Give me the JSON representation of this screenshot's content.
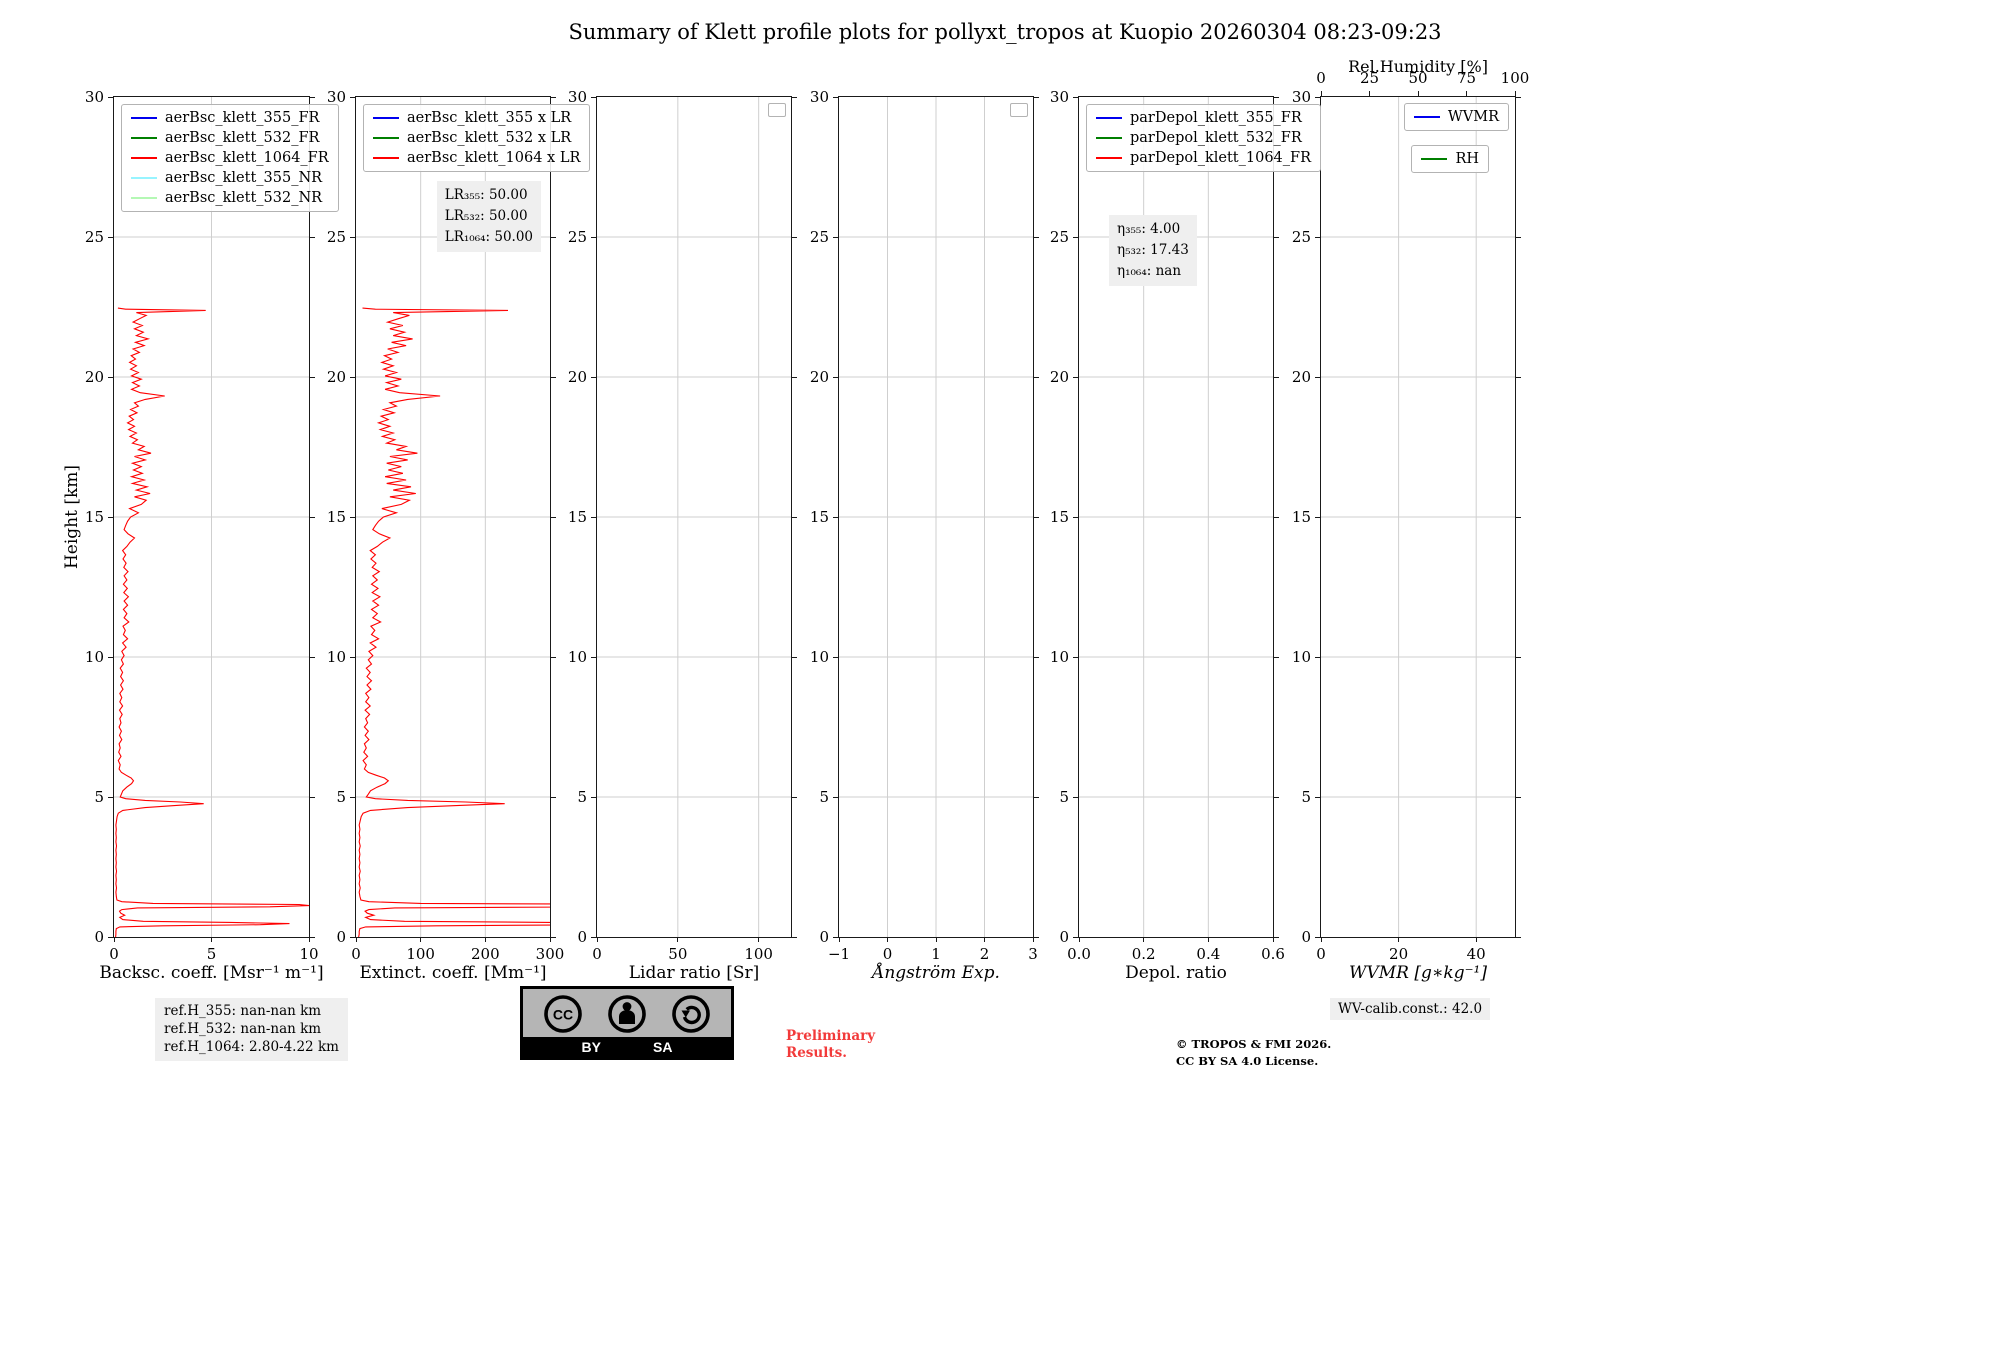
{
  "title": "Summary of Klett profile plots for pollyxt_tropos at Kuopio 20260304 08:23-09:23",
  "ylabel": "Height [km]",
  "colors": {
    "blue": "#0000ee",
    "green": "#007f00",
    "red": "#ff0000",
    "light_cyan": "#97f4ff",
    "pale_green": "#b4f8b4",
    "grid": "#cfcfcf",
    "annotation_bg": "#efefef"
  },
  "profile": {
    "name": "aerBsc_klett_1064_FR",
    "units": {
      "height": "km",
      "backscatter": "Msr⁻¹ m⁻¹"
    },
    "points": [
      [
        0.0,
        0.08
      ],
      [
        0.1,
        0.1
      ],
      [
        0.2,
        0.1
      ],
      [
        0.3,
        0.12
      ],
      [
        0.36,
        0.3
      ],
      [
        0.4,
        2.5
      ],
      [
        0.44,
        7.5
      ],
      [
        0.48,
        9.0
      ],
      [
        0.52,
        6.0
      ],
      [
        0.56,
        1.5
      ],
      [
        0.62,
        0.45
      ],
      [
        0.7,
        0.3
      ],
      [
        0.78,
        0.55
      ],
      [
        0.85,
        0.35
      ],
      [
        0.92,
        0.28
      ],
      [
        0.98,
        0.4
      ],
      [
        1.04,
        1.2
      ],
      [
        1.08,
        8.0
      ],
      [
        1.12,
        10.0
      ],
      [
        1.16,
        9.5
      ],
      [
        1.2,
        2.0
      ],
      [
        1.26,
        0.4
      ],
      [
        1.32,
        0.15
      ],
      [
        1.45,
        0.12
      ],
      [
        1.6,
        0.1
      ],
      [
        1.75,
        0.13
      ],
      [
        1.9,
        0.1
      ],
      [
        2.05,
        0.12
      ],
      [
        2.2,
        0.1
      ],
      [
        2.35,
        0.13
      ],
      [
        2.5,
        0.1
      ],
      [
        2.65,
        0.12
      ],
      [
        2.8,
        0.1
      ],
      [
        2.95,
        0.12
      ],
      [
        3.1,
        0.1
      ],
      [
        3.25,
        0.13
      ],
      [
        3.4,
        0.1
      ],
      [
        3.55,
        0.12
      ],
      [
        3.7,
        0.1
      ],
      [
        3.85,
        0.12
      ],
      [
        4.0,
        0.1
      ],
      [
        4.15,
        0.13
      ],
      [
        4.3,
        0.16
      ],
      [
        4.42,
        0.22
      ],
      [
        4.52,
        0.45
      ],
      [
        4.62,
        1.6
      ],
      [
        4.7,
        3.2
      ],
      [
        4.76,
        4.6
      ],
      [
        4.82,
        3.4
      ],
      [
        4.88,
        1.6
      ],
      [
        4.94,
        0.6
      ],
      [
        5.0,
        0.32
      ],
      [
        5.1,
        0.38
      ],
      [
        5.22,
        0.45
      ],
      [
        5.35,
        0.65
      ],
      [
        5.48,
        0.9
      ],
      [
        5.58,
        1.0
      ],
      [
        5.68,
        0.88
      ],
      [
        5.78,
        0.62
      ],
      [
        5.88,
        0.38
      ],
      [
        6.0,
        0.26
      ],
      [
        6.15,
        0.32
      ],
      [
        6.3,
        0.22
      ],
      [
        6.45,
        0.36
      ],
      [
        6.6,
        0.24
      ],
      [
        6.75,
        0.32
      ],
      [
        6.9,
        0.26
      ],
      [
        7.05,
        0.4
      ],
      [
        7.2,
        0.28
      ],
      [
        7.35,
        0.38
      ],
      [
        7.5,
        0.26
      ],
      [
        7.65,
        0.36
      ],
      [
        7.8,
        0.3
      ],
      [
        7.95,
        0.42
      ],
      [
        8.1,
        0.28
      ],
      [
        8.25,
        0.44
      ],
      [
        8.4,
        0.3
      ],
      [
        8.55,
        0.4
      ],
      [
        8.7,
        0.3
      ],
      [
        8.85,
        0.46
      ],
      [
        9.0,
        0.34
      ],
      [
        9.15,
        0.48
      ],
      [
        9.3,
        0.34
      ],
      [
        9.45,
        0.44
      ],
      [
        9.6,
        0.32
      ],
      [
        9.75,
        0.48
      ],
      [
        9.9,
        0.38
      ],
      [
        10.05,
        0.52
      ],
      [
        10.2,
        0.4
      ],
      [
        10.35,
        0.62
      ],
      [
        10.5,
        0.44
      ],
      [
        10.65,
        0.7
      ],
      [
        10.8,
        0.48
      ],
      [
        10.95,
        0.58
      ],
      [
        11.1,
        0.46
      ],
      [
        11.25,
        0.76
      ],
      [
        11.4,
        0.52
      ],
      [
        11.55,
        0.66
      ],
      [
        11.7,
        0.48
      ],
      [
        11.85,
        0.7
      ],
      [
        12.0,
        0.52
      ],
      [
        12.15,
        0.74
      ],
      [
        12.3,
        0.5
      ],
      [
        12.45,
        0.68
      ],
      [
        12.6,
        0.48
      ],
      [
        12.75,
        0.66
      ],
      [
        12.9,
        0.52
      ],
      [
        13.05,
        0.72
      ],
      [
        13.2,
        0.5
      ],
      [
        13.35,
        0.62
      ],
      [
        13.5,
        0.46
      ],
      [
        13.65,
        0.6
      ],
      [
        13.8,
        0.44
      ],
      [
        13.95,
        0.66
      ],
      [
        14.1,
        0.82
      ],
      [
        14.25,
        1.05
      ],
      [
        14.4,
        0.72
      ],
      [
        14.55,
        0.52
      ],
      [
        14.7,
        0.6
      ],
      [
        14.85,
        0.7
      ],
      [
        15.0,
        0.85
      ],
      [
        15.15,
        1.25
      ],
      [
        15.3,
        0.8
      ],
      [
        15.45,
        1.4
      ],
      [
        15.6,
        1.65
      ],
      [
        15.72,
        1.05
      ],
      [
        15.84,
        1.85
      ],
      [
        15.96,
        1.15
      ],
      [
        16.08,
        1.7
      ],
      [
        16.2,
        0.95
      ],
      [
        16.32,
        1.55
      ],
      [
        16.44,
        0.9
      ],
      [
        16.56,
        1.45
      ],
      [
        16.68,
        1.0
      ],
      [
        16.8,
        1.4
      ],
      [
        16.92,
        0.95
      ],
      [
        17.04,
        1.6
      ],
      [
        17.16,
        1.05
      ],
      [
        17.28,
        1.9
      ],
      [
        17.4,
        1.25
      ],
      [
        17.52,
        1.55
      ],
      [
        17.64,
        0.95
      ],
      [
        17.76,
        1.2
      ],
      [
        17.88,
        0.82
      ],
      [
        18.0,
        1.15
      ],
      [
        18.12,
        0.75
      ],
      [
        18.24,
        1.05
      ],
      [
        18.36,
        0.7
      ],
      [
        18.48,
        1.0
      ],
      [
        18.6,
        0.78
      ],
      [
        18.72,
        1.18
      ],
      [
        18.84,
        0.85
      ],
      [
        18.96,
        1.25
      ],
      [
        19.08,
        1.05
      ],
      [
        19.2,
        1.6
      ],
      [
        19.32,
        2.6
      ],
      [
        19.44,
        1.35
      ],
      [
        19.56,
        0.9
      ],
      [
        19.68,
        1.3
      ],
      [
        19.8,
        0.95
      ],
      [
        19.92,
        1.4
      ],
      [
        20.04,
        0.9
      ],
      [
        20.16,
        1.25
      ],
      [
        20.28,
        0.85
      ],
      [
        20.4,
        1.15
      ],
      [
        20.52,
        0.8
      ],
      [
        20.64,
        1.1
      ],
      [
        20.76,
        0.88
      ],
      [
        20.88,
        1.3
      ],
      [
        21.0,
        0.98
      ],
      [
        21.12,
        1.55
      ],
      [
        21.24,
        1.1
      ],
      [
        21.36,
        1.75
      ],
      [
        21.48,
        1.15
      ],
      [
        21.6,
        1.5
      ],
      [
        21.72,
        1.05
      ],
      [
        21.84,
        1.45
      ],
      [
        21.96,
        0.98
      ],
      [
        22.08,
        1.3
      ],
      [
        22.2,
        1.65
      ],
      [
        22.3,
        1.15
      ],
      [
        22.38,
        4.7
      ],
      [
        22.42,
        0.6
      ],
      [
        22.46,
        0.2
      ]
    ]
  },
  "chart_data": [
    {
      "id": "backscatter",
      "type": "line",
      "xlabel": "Backsc. coeff. [Msr⁻¹ m⁻¹]",
      "xlim": [
        0,
        10
      ],
      "xticks": [
        {
          "v": 0,
          "label": "0"
        },
        {
          "v": 5,
          "label": "5"
        },
        {
          "v": 10,
          "label": "10"
        }
      ],
      "ylim": [
        0,
        30
      ],
      "yticks": [
        {
          "v": 0,
          "label": "0"
        },
        {
          "v": 5,
          "label": "5"
        },
        {
          "v": 10,
          "label": "10"
        },
        {
          "v": 15,
          "label": "15"
        },
        {
          "v": 20,
          "label": "20"
        },
        {
          "v": 25,
          "label": "25"
        },
        {
          "v": 30,
          "label": "30"
        }
      ],
      "grid": true,
      "legend": [
        {
          "label": "aerBsc_klett_355_FR",
          "color": "#0000ee"
        },
        {
          "label": "aerBsc_klett_532_FR",
          "color": "#007f00"
        },
        {
          "label": "aerBsc_klett_1064_FR",
          "color": "#ff0000"
        },
        {
          "label": "aerBsc_klett_355_NR",
          "color": "#97f4ff"
        },
        {
          "label": "aerBsc_klett_532_NR",
          "color": "#b4f8b4"
        }
      ],
      "series": [
        {
          "name": "aerBsc_klett_1064_FR",
          "color": "#ff0000",
          "source": "profile",
          "scale": 1
        }
      ]
    },
    {
      "id": "extinction",
      "type": "line",
      "xlabel": "Extinct. coeff. [Mm⁻¹]",
      "xlim": [
        0,
        300
      ],
      "xticks": [
        {
          "v": 0,
          "label": "0"
        },
        {
          "v": 100,
          "label": "100"
        },
        {
          "v": 200,
          "label": "200"
        },
        {
          "v": 300,
          "label": "300"
        }
      ],
      "ylim": [
        0,
        30
      ],
      "yticks": [
        {
          "v": 0,
          "label": "0"
        },
        {
          "v": 5,
          "label": "5"
        },
        {
          "v": 10,
          "label": "10"
        },
        {
          "v": 15,
          "label": "15"
        },
        {
          "v": 20,
          "label": "20"
        },
        {
          "v": 25,
          "label": "25"
        },
        {
          "v": 30,
          "label": "30"
        }
      ],
      "grid": true,
      "legend": [
        {
          "label": "aerBsc_klett_355 x LR",
          "color": "#0000ee"
        },
        {
          "label": "aerBsc_klett_532 x LR",
          "color": "#007f00"
        },
        {
          "label": "aerBsc_klett_1064 x LR",
          "color": "#ff0000"
        }
      ],
      "annotation": [
        "LR₃₅₅: 50.00",
        "LR₅₃₂: 50.00",
        "LR₁₀₆₄: 50.00"
      ],
      "series": [
        {
          "name": "aerBsc_klett_1064 x LR",
          "color": "#ff0000",
          "source": "profile",
          "scale": 50
        }
      ]
    },
    {
      "id": "lidar-ratio",
      "type": "line",
      "xlabel": "Lidar ratio [Sr]",
      "xlim": [
        0,
        120
      ],
      "xticks": [
        {
          "v": 0,
          "label": "0"
        },
        {
          "v": 50,
          "label": "50"
        },
        {
          "v": 100,
          "label": "100"
        }
      ],
      "ylim": [
        0,
        30
      ],
      "yticks": [
        {
          "v": 0,
          "label": "0"
        },
        {
          "v": 5,
          "label": "5"
        },
        {
          "v": 10,
          "label": "10"
        },
        {
          "v": 15,
          "label": "15"
        },
        {
          "v": 20,
          "label": "20"
        },
        {
          "v": 25,
          "label": "25"
        },
        {
          "v": 30,
          "label": "30"
        }
      ],
      "grid": true,
      "empty_legend": true,
      "series": []
    },
    {
      "id": "angstrom",
      "type": "line",
      "xlabel": "Ångström Exp.",
      "xlim": [
        -1,
        3
      ],
      "xticks": [
        {
          "v": -1,
          "label": "−1"
        },
        {
          "v": 0,
          "label": "0"
        },
        {
          "v": 1,
          "label": "1"
        },
        {
          "v": 2,
          "label": "2"
        },
        {
          "v": 3,
          "label": "3"
        }
      ],
      "ylim": [
        0,
        30
      ],
      "yticks": [
        {
          "v": 0,
          "label": "0"
        },
        {
          "v": 5,
          "label": "5"
        },
        {
          "v": 10,
          "label": "10"
        },
        {
          "v": 15,
          "label": "15"
        },
        {
          "v": 20,
          "label": "20"
        },
        {
          "v": 25,
          "label": "25"
        },
        {
          "v": 30,
          "label": "30"
        }
      ],
      "grid": true,
      "empty_legend": true,
      "series": []
    },
    {
      "id": "depol-ratio",
      "type": "line",
      "xlabel": "Depol. ratio",
      "xlim": [
        0,
        0.6
      ],
      "xticks": [
        {
          "v": 0,
          "label": "0.0"
        },
        {
          "v": 0.2,
          "label": "0.2"
        },
        {
          "v": 0.4,
          "label": "0.4"
        },
        {
          "v": 0.6,
          "label": "0.6"
        }
      ],
      "ylim": [
        0,
        30
      ],
      "yticks": [
        {
          "v": 0,
          "label": "0"
        },
        {
          "v": 5,
          "label": "5"
        },
        {
          "v": 10,
          "label": "10"
        },
        {
          "v": 15,
          "label": "15"
        },
        {
          "v": 20,
          "label": "20"
        },
        {
          "v": 25,
          "label": "25"
        },
        {
          "v": 30,
          "label": "30"
        }
      ],
      "grid": true,
      "legend": [
        {
          "label": "parDepol_klett_355_FR",
          "color": "#0000ee"
        },
        {
          "label": "parDepol_klett_532_FR",
          "color": "#007f00"
        },
        {
          "label": "parDepol_klett_1064_FR",
          "color": "#ff0000"
        }
      ],
      "annotation": [
        "η₃₅₅: 4.00",
        "η₅₃₂: 17.43",
        "η₁₀₆₄: nan"
      ],
      "series": []
    },
    {
      "id": "wvmr",
      "type": "line",
      "xlabel": "WVMR [g∗kg⁻¹]",
      "xlim": [
        0,
        50
      ],
      "xticks": [
        {
          "v": 0,
          "label": "0"
        },
        {
          "v": 20,
          "label": "20"
        },
        {
          "v": 40,
          "label": "40"
        }
      ],
      "ylim": [
        0,
        30
      ],
      "yticks": [
        {
          "v": 0,
          "label": "0"
        },
        {
          "v": 5,
          "label": "5"
        },
        {
          "v": 10,
          "label": "10"
        },
        {
          "v": 15,
          "label": "15"
        },
        {
          "v": 20,
          "label": "20"
        },
        {
          "v": 25,
          "label": "25"
        },
        {
          "v": 30,
          "label": "30"
        }
      ],
      "grid": true,
      "top_axis": {
        "label": "Rel.Humidity [%]",
        "xlim": [
          0,
          100
        ],
        "xticks": [
          {
            "v": 0,
            "label": "0"
          },
          {
            "v": 25,
            "label": "25"
          },
          {
            "v": 50,
            "label": "50"
          },
          {
            "v": 75,
            "label": "75"
          },
          {
            "v": 100,
            "label": "100"
          }
        ]
      },
      "legend": [
        {
          "label": "WVMR",
          "color": "#0000ee"
        },
        {
          "label": "RH",
          "color": "#007f00"
        }
      ],
      "series": []
    }
  ],
  "footer": {
    "ref_box": [
      "ref.H_355: nan-nan km",
      "ref.H_532: nan-nan km",
      "ref.H_1064: 2.80-4.22 km"
    ],
    "preliminary": [
      "Preliminary",
      "Results."
    ],
    "license": [
      "© TROPOS & FMI 2026.",
      "CC BY SA 4.0 License."
    ],
    "wv_calib": "WV-calib.const.: 42.0",
    "cc_badge": {
      "by": "BY",
      "sa": "SA"
    }
  }
}
